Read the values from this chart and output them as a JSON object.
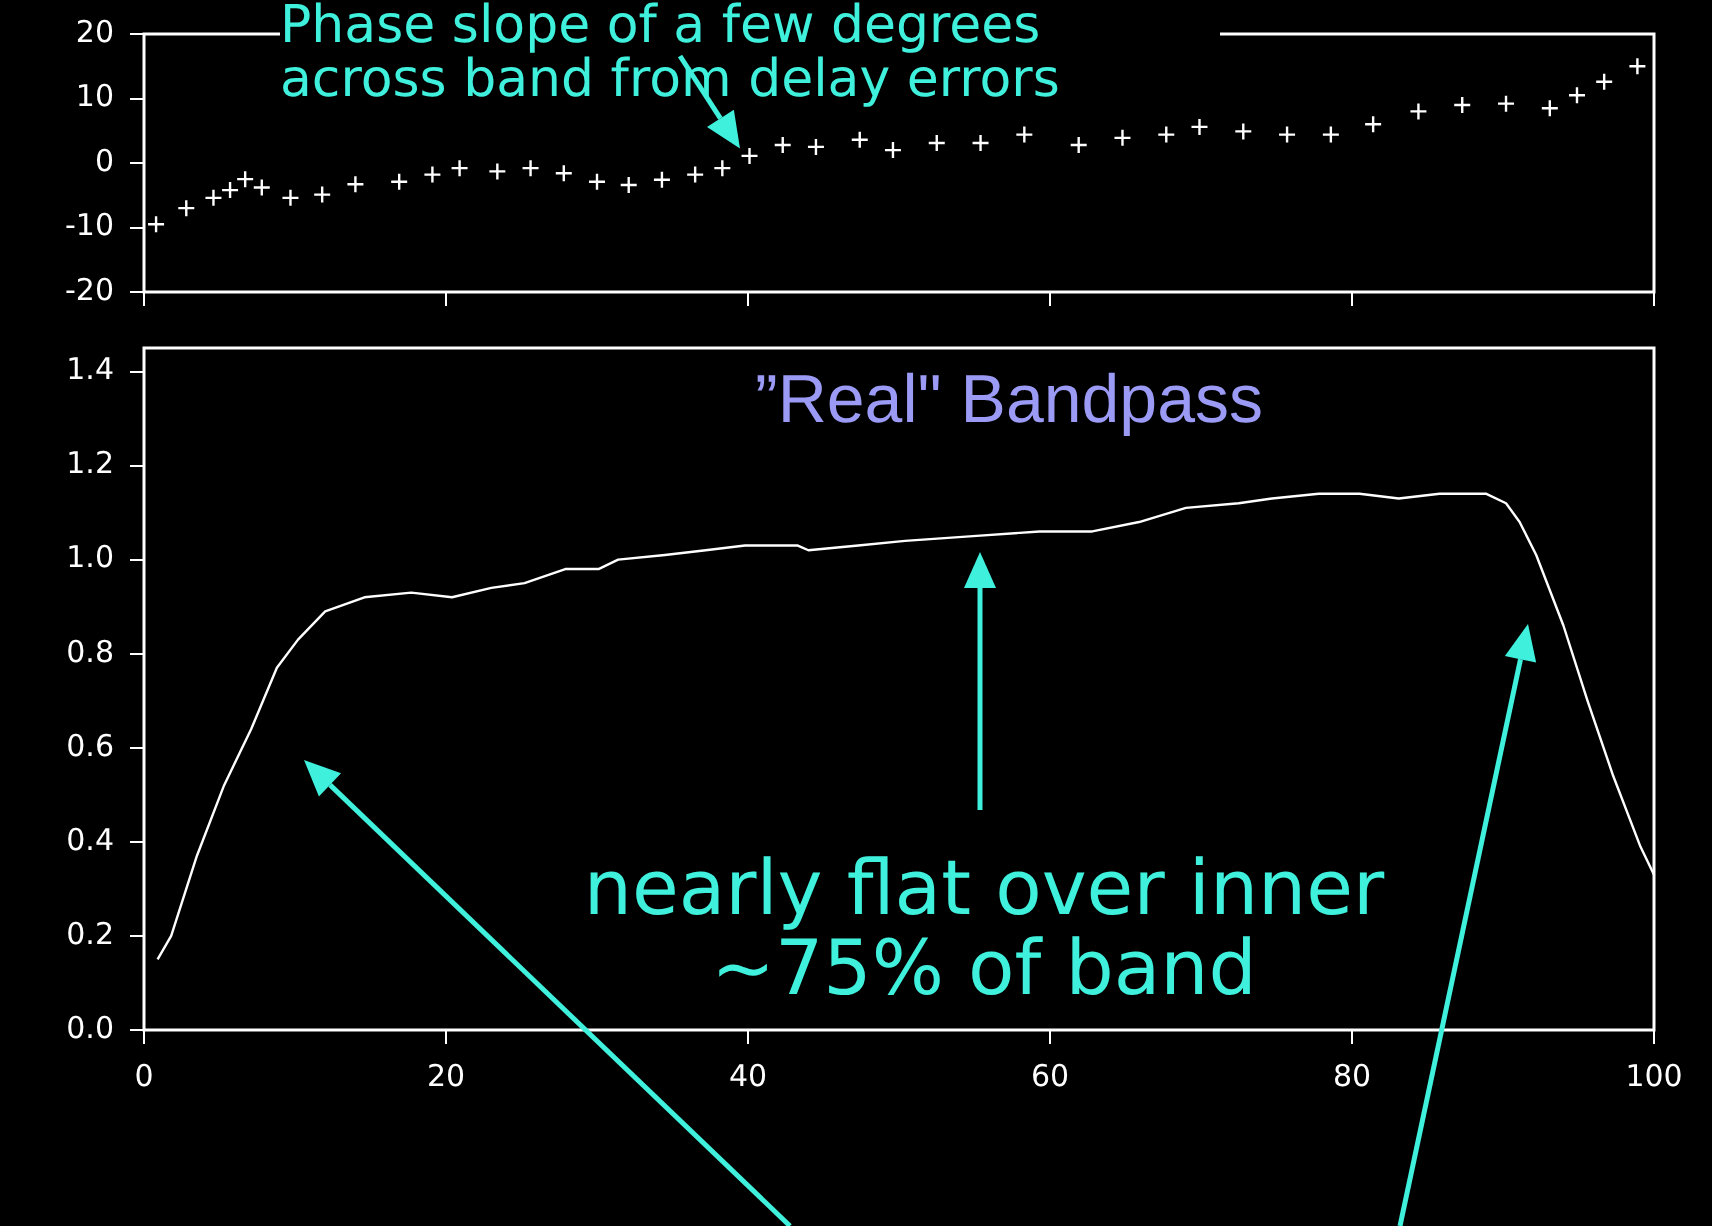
{
  "chart_data": [
    {
      "type": "scatter",
      "color": "#ffffff",
      "marker": "cross",
      "x": [
        0.8,
        2.8,
        4.6,
        5.7,
        6.7,
        7.8,
        9.7,
        11.8,
        14,
        16.9,
        19.1,
        20.9,
        23.4,
        25.6,
        27.8,
        30,
        32.1,
        34.3,
        36.5,
        38.3,
        40.1,
        42.3,
        44.5,
        47.4,
        49.6,
        52.5,
        55.4,
        58.3,
        61.9,
        64.8,
        67.7,
        69.9,
        72.8,
        75.7,
        78.6,
        81.4,
        84.4,
        87.3,
        90.2,
        93.1,
        94.9,
        96.7,
        98.9
      ],
      "values": [
        -9.5,
        -7,
        -5.4,
        -4.2,
        -2.5,
        -3.8,
        -5.4,
        -4.9,
        -3.3,
        -2.9,
        -1.8,
        -0.8,
        -1.3,
        -0.8,
        -1.6,
        -2.9,
        -3.4,
        -2.6,
        -1.8,
        -0.8,
        1.1,
        2.8,
        2.5,
        3.6,
        2,
        3.1,
        3.1,
        4.4,
        2.8,
        3.9,
        4.4,
        5.6,
        4.9,
        4.4,
        4.4,
        6,
        8,
        9,
        9.2,
        8.5,
        10.5,
        12.6,
        15
      ],
      "xlim": [
        0,
        100
      ],
      "xticks": [
        {
          "value": 0,
          "label": null
        },
        {
          "value": 20,
          "label": null
        },
        {
          "value": 40,
          "label": null
        },
        {
          "value": 60,
          "label": null
        },
        {
          "value": 80,
          "label": null
        },
        {
          "value": 100,
          "label": null
        }
      ],
      "ylim": [
        -20,
        20
      ],
      "yticks": [
        -20,
        -10,
        0,
        10,
        20
      ],
      "tick_labels": "y",
      "annotations": [
        {
          "text": "Phase slope of a few degrees across band from delay errors",
          "x": 40,
          "y": 1
        }
      ]
    },
    {
      "type": "line",
      "title": "”Real\" Bandpass",
      "color": "#ffffff",
      "marker": "none",
      "x": [
        0.9,
        1.8,
        3.5,
        5.3,
        7.1,
        8.8,
        10.2,
        12,
        14.6,
        17.7,
        20.4,
        23,
        25.2,
        27.9,
        30.1,
        31.4,
        34.5,
        37.2,
        39.8,
        43.3,
        44,
        47.3,
        50.4,
        54.9,
        59.3,
        62.8,
        65.9,
        69,
        72.5,
        74.7,
        77.8,
        80.5,
        83.1,
        85.8,
        88.9,
        90.2,
        91.1,
        92.2,
        94,
        95.6,
        97.3,
        99.1,
        100
      ],
      "values": [
        0.15,
        0.2,
        0.37,
        0.52,
        0.64,
        0.77,
        0.83,
        0.89,
        0.92,
        0.93,
        0.92,
        0.94,
        0.95,
        0.98,
        0.98,
        1,
        1.01,
        1.02,
        1.03,
        1.03,
        1.02,
        1.03,
        1.04,
        1.05,
        1.06,
        1.06,
        1.08,
        1.11,
        1.12,
        1.13,
        1.14,
        1.14,
        1.13,
        1.14,
        1.14,
        1.12,
        1.08,
        1.01,
        0.86,
        0.7,
        0.54,
        0.39,
        0.33
      ],
      "xlim": [
        0,
        100
      ],
      "xticks": [
        0,
        20,
        40,
        60,
        80,
        100
      ],
      "ylim": [
        0,
        1.45
      ],
      "yticks": [
        {
          "value": 0,
          "label": "0.0"
        },
        {
          "value": 0.2,
          "label": "0.2"
        },
        {
          "value": 0.4,
          "label": "0.4"
        },
        {
          "value": 0.6,
          "label": "0.6"
        },
        {
          "value": 0.8,
          "label": "0.8"
        },
        {
          "value": 1,
          "label": "1.0"
        },
        {
          "value": 1.2,
          "label": "1.2"
        },
        {
          "value": 1.4,
          "label": "1.4"
        }
      ],
      "annotations": [
        "nearly flat over inner ~75% of band"
      ]
    }
  ]
}
